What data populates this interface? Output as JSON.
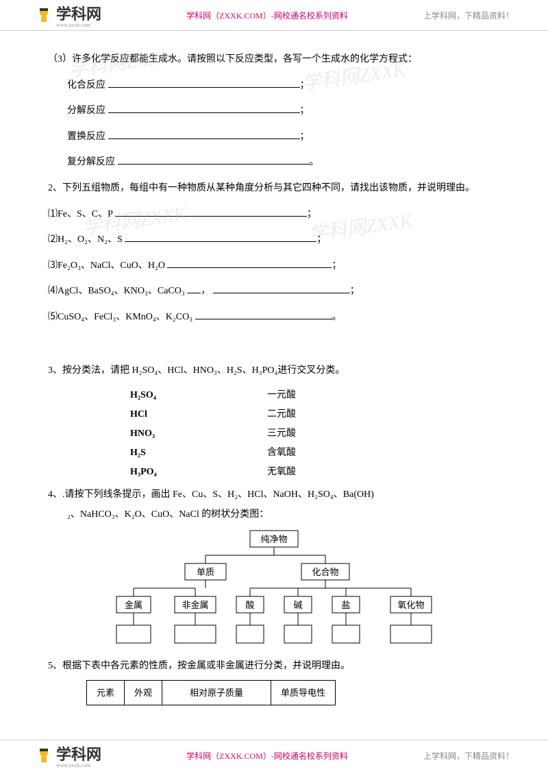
{
  "header": {
    "logo_text": "学科网",
    "logo_sub": "www.zxxk.com",
    "center": "学科网（ZXXK.COM）-网校通名校系列资料",
    "right": "上学科网，下精品资料！"
  },
  "q3_intro": "（3）许多化学反应都能生成水。请按照以下反应类型，各写一个生成水的化学方程式：",
  "q3_items": {
    "a": "化合反应",
    "b": "分解反应",
    "c": "置换反应",
    "d": "复分解反应"
  },
  "q2_intro": "2、下列五组物质，每组中有一种物质从某种角度分析与其它四种不同，请找出该物质，并说明理由。",
  "q2_items": {
    "1": "⑴Fe、S、C、P",
    "2": "⑵H₂、O₂、N₂、S",
    "3": "⑶Fe₂O₃、NaCl、CuO、H₂O",
    "4": "⑷AgCl、BaSO₄、KNO₃、CaCO₃",
    "5": "⑸CuSO₄、FeCl₃、KMnO₄、K₂CO₃"
  },
  "q3b_intro": "3、按分类法，请把 H₂SO₄、HCl、HNO₃、H₂S、H₃PO₄进行交叉分类。",
  "pairs": [
    {
      "l": "H₂SO₄",
      "r": "一元酸"
    },
    {
      "l": "HCl",
      "r": "二元酸"
    },
    {
      "l": "HNO₃",
      "r": "三元酸"
    },
    {
      "l": "H₂S",
      "r": "含氧酸"
    },
    {
      "l": "H₃PO₄",
      "r": "无氧酸"
    }
  ],
  "q4_line1": "4、.请按下列线条提示，画出 Fe、Cu、S、H₂、HCl、NaOH、H₂SO₄、Ba(OH)",
  "q4_line2": "₂、NaHCO₃、K₂O、CuO、NaCl 的树状分类图：",
  "tree": {
    "root": "纯净物",
    "level2": [
      "单质",
      "化合物"
    ],
    "level3": [
      "金属",
      "非金属",
      "酸",
      "碱",
      "盐",
      "氧化物"
    ],
    "box_fill": "#ffffff",
    "box_stroke": "#000000",
    "line_stroke": "#000000",
    "font_size": 13
  },
  "q5_intro": "5、根据下表中各元素的性质，按金属或非金属进行分类，并说明理由。",
  "table_cols": [
    "元素",
    "外观",
    "相对原子质量",
    "单质导电性"
  ],
  "watermarks": [
    "学科网ZXXK",
    "学科网ZXXK",
    "学科网ZXXK",
    "学科网ZXXK"
  ]
}
